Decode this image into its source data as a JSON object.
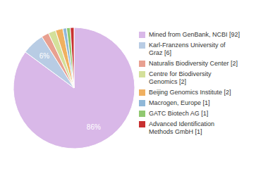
{
  "chart_data": {
    "type": "pie",
    "categories": [
      "Mined from GenBank, NCBI [92]",
      "Karl-Franzens University of\nGraz [6]",
      "Naturalis Biodiversity Center [2]",
      "Centre for Biodiversity\nGenomics [2]",
      "Beijing Genomics Institute [2]",
      "Macrogen, Europe [1]",
      "GATC Biotech AG [1]",
      "Advanced Identification\nMethods GmbH [1]"
    ],
    "values": [
      86,
      6,
      2,
      2,
      2,
      1,
      1,
      1
    ],
    "value_labels": [
      "86%",
      "6%",
      null,
      null,
      null,
      null,
      null,
      null
    ],
    "colors": [
      "#d9b8e8",
      "#b8cce4",
      "#e8a090",
      "#d4e09a",
      "#f0b060",
      "#90b8d8",
      "#90c870",
      "#c83030"
    ],
    "data_labels": true,
    "legend": "right"
  }
}
